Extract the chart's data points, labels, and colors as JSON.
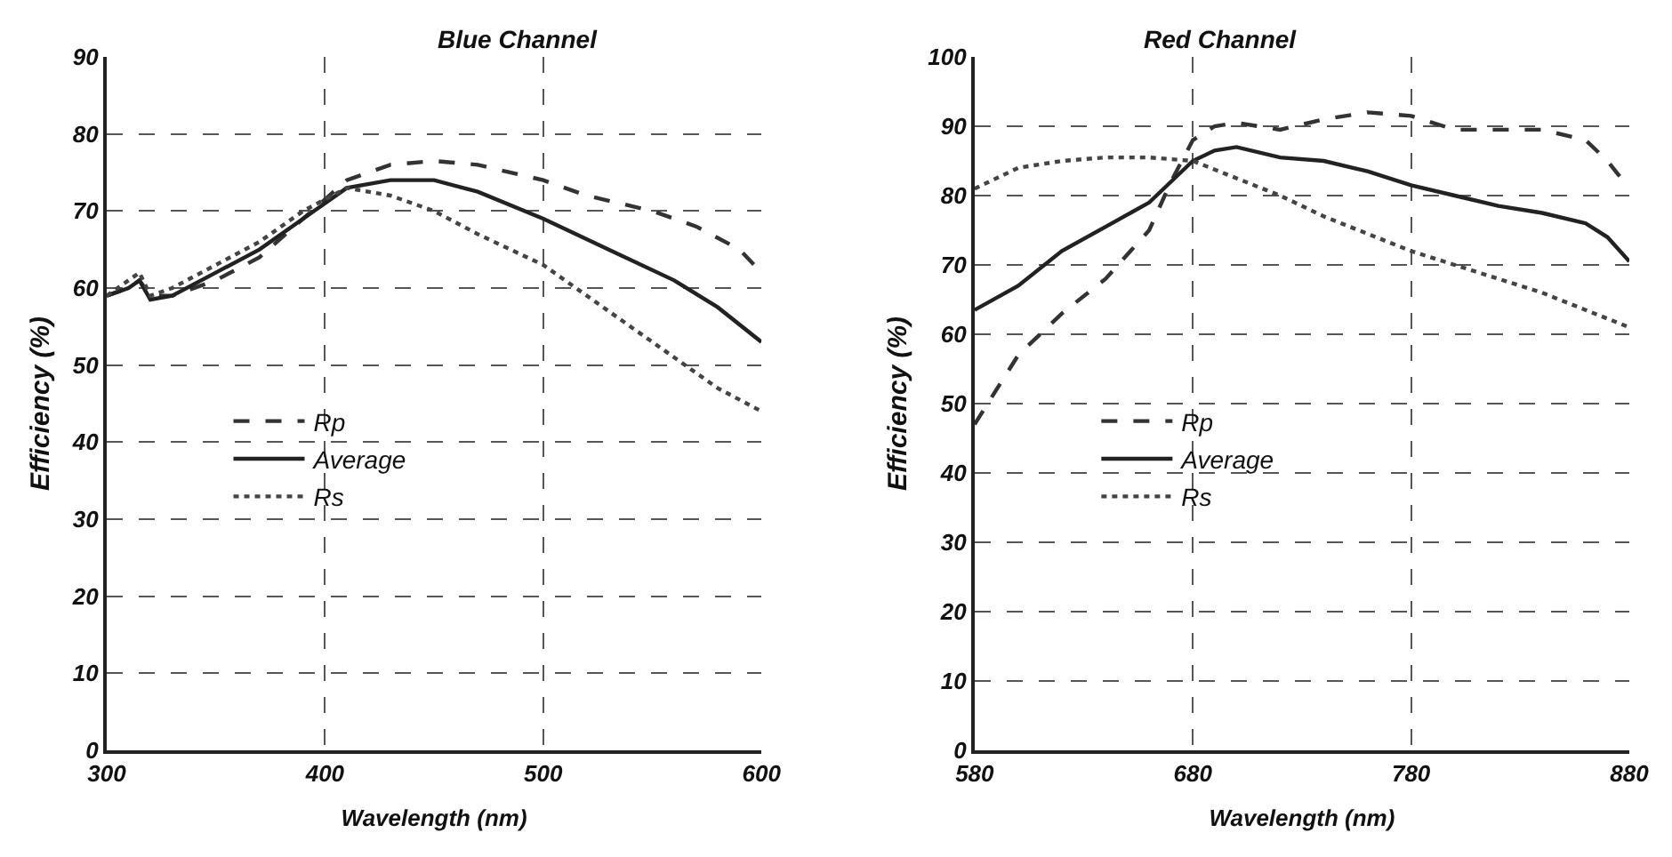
{
  "chart_data": [
    {
      "type": "line",
      "title": "Blue Channel",
      "xlabel": "Wavelength (nm)",
      "ylabel": "Efficiency (%)",
      "xlim": [
        300,
        600
      ],
      "xticks": [
        300,
        400,
        500,
        600
      ],
      "ylim": [
        0,
        90
      ],
      "yticks": [
        0,
        10,
        20,
        30,
        40,
        50,
        60,
        70,
        80,
        90
      ],
      "grid": true,
      "legend": "left",
      "marker": "none",
      "series": [
        {
          "name": "Rp",
          "color": "#333333",
          "line_style": "dashed",
          "x": [
            300,
            310,
            315,
            320,
            330,
            350,
            370,
            390,
            410,
            430,
            450,
            470,
            500,
            520,
            550,
            570,
            590,
            600
          ],
          "values": [
            59,
            60,
            61,
            59,
            59,
            61,
            64,
            69,
            74,
            76,
            76.5,
            76,
            74,
            72,
            70,
            68,
            65,
            62
          ]
        },
        {
          "name": "Average",
          "color": "#222222",
          "line_style": "solid",
          "x": [
            300,
            310,
            315,
            320,
            330,
            350,
            370,
            390,
            410,
            430,
            450,
            470,
            500,
            530,
            560,
            580,
            600
          ],
          "values": [
            59,
            60,
            61,
            58.5,
            59,
            62,
            65,
            69,
            73,
            74,
            74,
            72.5,
            69,
            65,
            61,
            57.5,
            53
          ]
        },
        {
          "name": "Rs",
          "color": "#444444",
          "line_style": "dotted",
          "x": [
            300,
            310,
            315,
            320,
            330,
            350,
            370,
            390,
            410,
            430,
            450,
            470,
            500,
            530,
            560,
            580,
            600
          ],
          "values": [
            59,
            61,
            62,
            59,
            60,
            63,
            66,
            70,
            73,
            72,
            70,
            67,
            63,
            57,
            51,
            47,
            44
          ]
        }
      ]
    },
    {
      "type": "line",
      "title": "Red Channel",
      "xlabel": "Wavelength (nm)",
      "ylabel": "Efficiency (%)",
      "xlim": [
        580,
        880
      ],
      "xticks": [
        580,
        680,
        780,
        880
      ],
      "ylim": [
        0,
        100
      ],
      "yticks": [
        0,
        10,
        20,
        30,
        40,
        50,
        60,
        70,
        80,
        90,
        100
      ],
      "grid": true,
      "legend": "left",
      "marker": "none",
      "series": [
        {
          "name": "Rp",
          "color": "#333333",
          "line_style": "dashed",
          "x": [
            580,
            600,
            620,
            640,
            660,
            670,
            680,
            690,
            700,
            720,
            740,
            760,
            780,
            800,
            820,
            840,
            860,
            870,
            880
          ],
          "values": [
            47,
            57,
            63,
            68,
            75,
            82,
            88,
            90,
            90.5,
            89.5,
            91,
            92,
            91.5,
            89.5,
            89.5,
            89.5,
            88,
            85,
            81
          ]
        },
        {
          "name": "Average",
          "color": "#222222",
          "line_style": "solid",
          "x": [
            580,
            600,
            620,
            640,
            660,
            680,
            690,
            700,
            720,
            740,
            760,
            780,
            800,
            820,
            840,
            860,
            870,
            880
          ],
          "values": [
            63.5,
            67,
            72,
            75.5,
            79,
            85,
            86.5,
            87,
            85.5,
            85,
            83.5,
            81.5,
            80,
            78.5,
            77.5,
            76,
            74,
            70.5
          ]
        },
        {
          "name": "Rs",
          "color": "#444444",
          "line_style": "dotted",
          "x": [
            580,
            600,
            620,
            640,
            660,
            680,
            700,
            720,
            740,
            760,
            780,
            800,
            820,
            840,
            860,
            880
          ],
          "values": [
            81,
            84,
            85,
            85.5,
            85.5,
            85,
            82.5,
            80,
            77,
            74.5,
            72,
            70,
            68,
            66,
            63.5,
            61
          ]
        }
      ]
    }
  ]
}
